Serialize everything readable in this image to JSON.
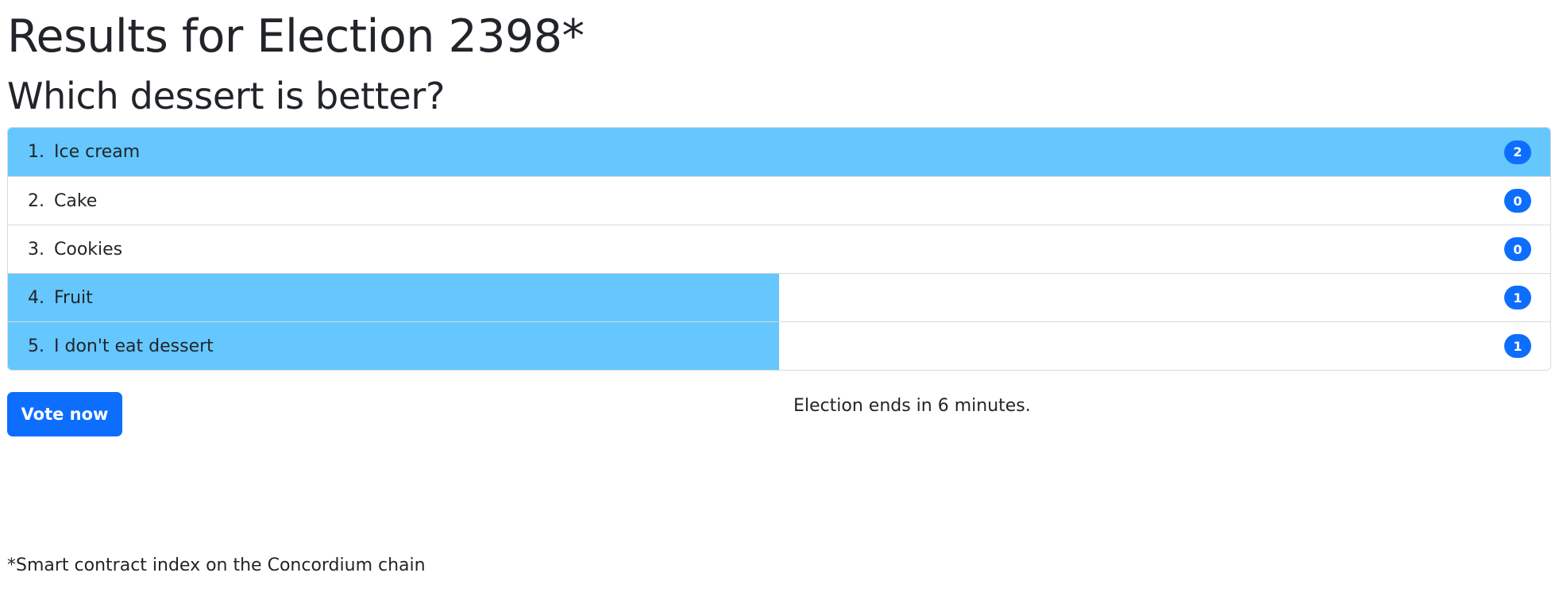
{
  "page": {
    "title": "Results for Election 2398*",
    "question": "Which dessert is better?",
    "accent_color": "#0d6efd",
    "bar_color": "#65c7fd"
  },
  "results": {
    "max_votes": 2,
    "options": [
      {
        "number": "1.",
        "label": "Ice cream",
        "votes": 2
      },
      {
        "number": "2.",
        "label": "Cake",
        "votes": 0
      },
      {
        "number": "3.",
        "label": "Cookies",
        "votes": 0
      },
      {
        "number": "4.",
        "label": "Fruit",
        "votes": 1
      },
      {
        "number": "5.",
        "label": "I don't eat dessert",
        "votes": 1
      }
    ]
  },
  "actions": {
    "vote_label": "Vote now"
  },
  "status": {
    "ends_text": "Election ends in 6 minutes."
  },
  "footer": {
    "footnote": "*Smart contract index on the Concordium chain"
  }
}
